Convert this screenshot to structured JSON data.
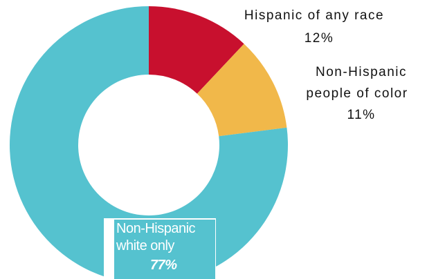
{
  "chart_data": {
    "type": "pie",
    "style": "donut",
    "categories": [
      "Hispanic of any race",
      "Non-Hispanic people of color",
      "Non-Hispanic white only"
    ],
    "values": [
      12,
      11,
      77
    ],
    "value_labels": [
      "12%",
      "11%",
      "77%"
    ],
    "colors": [
      "#c8102e",
      "#f1b84a",
      "#55c2cf"
    ],
    "labels": {
      "hispanic_line1": "Hispanic of any race",
      "hispanic_value": "12%",
      "poc_line1": "Non-Hispanic",
      "poc_line2": "people of color",
      "poc_value": "11%",
      "white_line1": "Non-Hispanic",
      "white_line2": "white only",
      "white_value": "77%"
    }
  }
}
